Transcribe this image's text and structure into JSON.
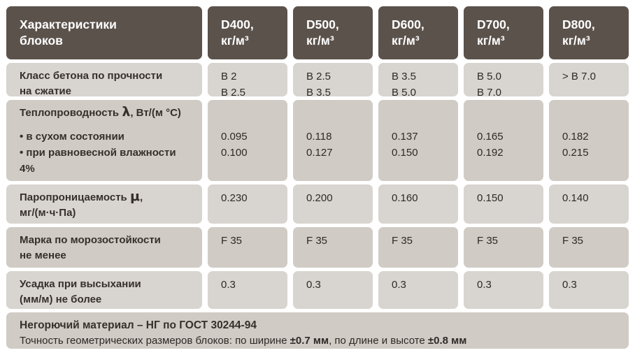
{
  "colors": {
    "header_bg": "#5b524c",
    "row_light": "#d8d4cf",
    "row_dark": "#d0cbc5",
    "header_text": "#ffffff",
    "label_text": "#36302c",
    "value_text": "#2d2a27",
    "page_bg": "#ffffff"
  },
  "table": {
    "header": {
      "characteristics": {
        "line1": "Характеристики",
        "line2": "блоков"
      },
      "columns": [
        {
          "name": "D400,",
          "unit": "кг/м³"
        },
        {
          "name": "D500,",
          "unit": "кг/м³"
        },
        {
          "name": "D600,",
          "unit": "кг/м³"
        },
        {
          "name": "D700,",
          "unit": "кг/м³"
        },
        {
          "name": "D800,",
          "unit": "кг/м³"
        }
      ]
    },
    "rows": [
      {
        "label": {
          "line1": "Класс бетона по прочности",
          "line2": "на сжатие"
        },
        "values": [
          "В 2\nВ 2.5",
          "В 2.5\nВ 3.5",
          "В 3.5\nВ 5.0",
          "В 5.0\nВ 7.0",
          "> В 7.0"
        ]
      },
      {
        "label": {
          "prefix": "Теплопроводность ",
          "symbol": "λ",
          "suffix": ", Вт/(м °С)"
        },
        "bullets": [
          "• в сухом состоянии",
          "• при равновесной влажности 4%"
        ],
        "values": [
          "0.095\n0.100",
          "0.118\n0.127",
          "0.137\n0.150",
          "0.165\n0.192",
          "0.182\n0.215"
        ]
      },
      {
        "label": {
          "prefix": "Паропроницаемость ",
          "symbol": "μ",
          "suffix": ",",
          "line2": "мг/(м·ч·Па)"
        },
        "values": [
          "0.230",
          "0.200",
          "0.160",
          "0.150",
          "0.140"
        ]
      },
      {
        "label": {
          "line1": "Марка по морозостойкости",
          "line2": "не менее"
        },
        "values": [
          "F 35",
          "F 35",
          "F 35",
          "F 35",
          "F 35"
        ]
      },
      {
        "label": {
          "line1": "Усадка при высыхании",
          "line2": "(мм/м) не более"
        },
        "values": [
          "0.3",
          "0.3",
          "0.3",
          "0.3",
          "0.3"
        ]
      }
    ],
    "footer": {
      "line1": "Негорючий материал – НГ по ГОСТ 30244-94",
      "line2": {
        "seg1": "Точность геометрических размеров блоков: по ширине ",
        "bold1": "±0.7 мм",
        "seg2": ", по длине и высоте ",
        "bold2": "±0.8 мм"
      }
    }
  }
}
